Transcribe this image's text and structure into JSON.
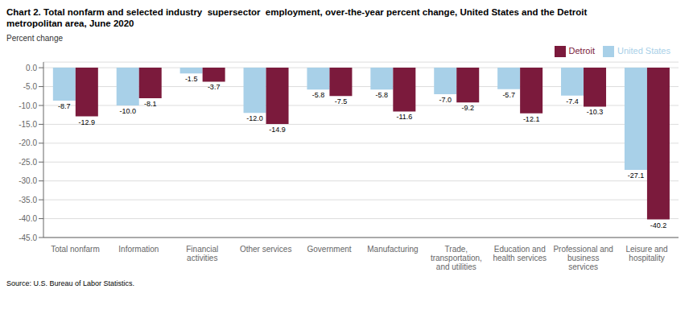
{
  "chart_data": {
    "type": "bar",
    "title": "Chart 2. Total nonfarm and selected industry  supersector  employment, over-the-year percent change, United States and the Detroit\nmetropolitan area, June 2020",
    "y_label": "Percent change",
    "annotations": [
      "Source: U.S. Bureau of Labor Statistics."
    ],
    "categories": [
      "Total nonfarm",
      "Information",
      "Financial\nactivities",
      "Other services",
      "Government",
      "Manufacturing",
      "Trade,\ntransportation,\nand utilities",
      "Education and\nhealth services",
      "Professional and\nbusiness\nservices",
      "Leisure and\nhospitality"
    ],
    "series": [
      {
        "name": "United States",
        "color": "#a8d0e8",
        "values": [
          -8.7,
          -10.0,
          -1.5,
          -12.0,
          -5.8,
          -5.8,
          -7.0,
          -5.7,
          -7.4,
          -27.1
        ],
        "value_labels": [
          "-8.7",
          "-10.0",
          "-1.5",
          "-12.0",
          "-5.8",
          "-5.8",
          "-7.0",
          "-5.7",
          "-7.4",
          "-27.1"
        ]
      },
      {
        "name": "Detroit",
        "color": "#7b1a3c",
        "values": [
          -12.9,
          -8.1,
          -3.7,
          -14.9,
          -7.5,
          -11.6,
          -9.2,
          -12.1,
          -10.3,
          -40.2
        ],
        "value_labels": [
          "-12.9",
          "-8.1",
          "-3.7",
          "-14.9",
          "-7.5",
          "-11.6",
          "-9.2",
          "-12.1",
          "-10.3",
          "-40.2"
        ]
      }
    ],
    "ylim": [
      -45.0,
      1.5
    ],
    "yticks": [
      {
        "value": 0,
        "label": "0.0"
      },
      {
        "value": -5,
        "label": "-5.0"
      },
      {
        "value": -10,
        "label": "-10.0"
      },
      {
        "value": -15,
        "label": "-15.0"
      },
      {
        "value": -20,
        "label": "-20.0"
      },
      {
        "value": -25,
        "label": "-25.0"
      },
      {
        "value": -30,
        "label": "-30.0"
      },
      {
        "value": -35,
        "label": "-35.0"
      },
      {
        "value": -40,
        "label": "-40.0"
      },
      {
        "value": -45,
        "label": "-45.0"
      }
    ],
    "grid": true,
    "legend": "upper right",
    "data_labels": true
  }
}
